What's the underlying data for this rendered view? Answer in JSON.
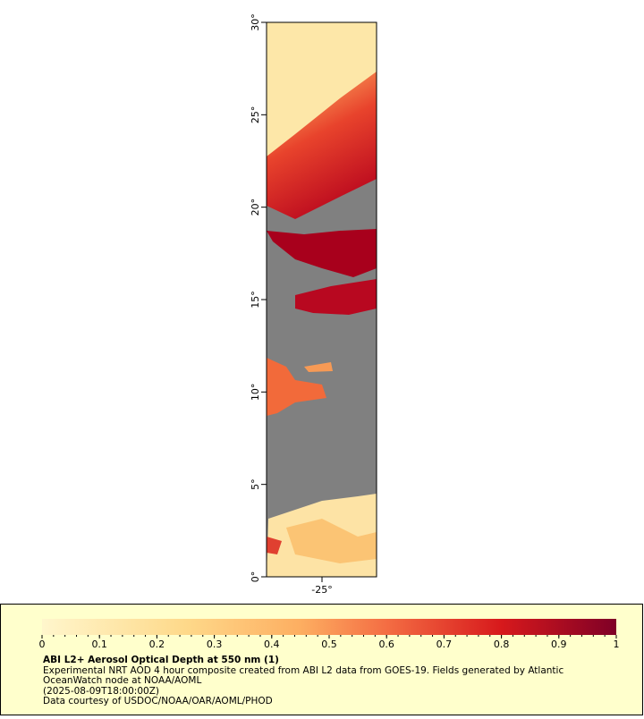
{
  "map": {
    "lat_range": [
      0,
      30
    ],
    "lat_ticks": [
      {
        "value": 0,
        "label": "0°"
      },
      {
        "value": 5,
        "label": "5°"
      },
      {
        "value": 10,
        "label": "10°"
      },
      {
        "value": 15,
        "label": "15°"
      },
      {
        "value": 20,
        "label": "20°"
      },
      {
        "value": 25,
        "label": "25°"
      },
      {
        "value": 30,
        "label": "30°"
      }
    ],
    "lon_ticks": [
      {
        "value": -25,
        "label": "-25°"
      }
    ]
  },
  "colorbar": {
    "range": [
      0,
      1
    ],
    "ticks": [
      0,
      0.1,
      0.2,
      0.3,
      0.4,
      0.5,
      0.6,
      0.7,
      0.8,
      0.9,
      1
    ]
  },
  "caption": {
    "title": "ABI L2+ Aerosol Optical Depth at 550 nm (1)",
    "lines": [
      "Experimental NRT AOD 4 hour composite created from ABI L2 data from GOES-19. Fields generated by Atlantic",
      "OceanWatch node at NOAA/AOML",
      "(2025-08-09T18:00:00Z)",
      "Data courtesy of USDOC/NOAA/OAR/AOML/PHOD"
    ]
  }
}
